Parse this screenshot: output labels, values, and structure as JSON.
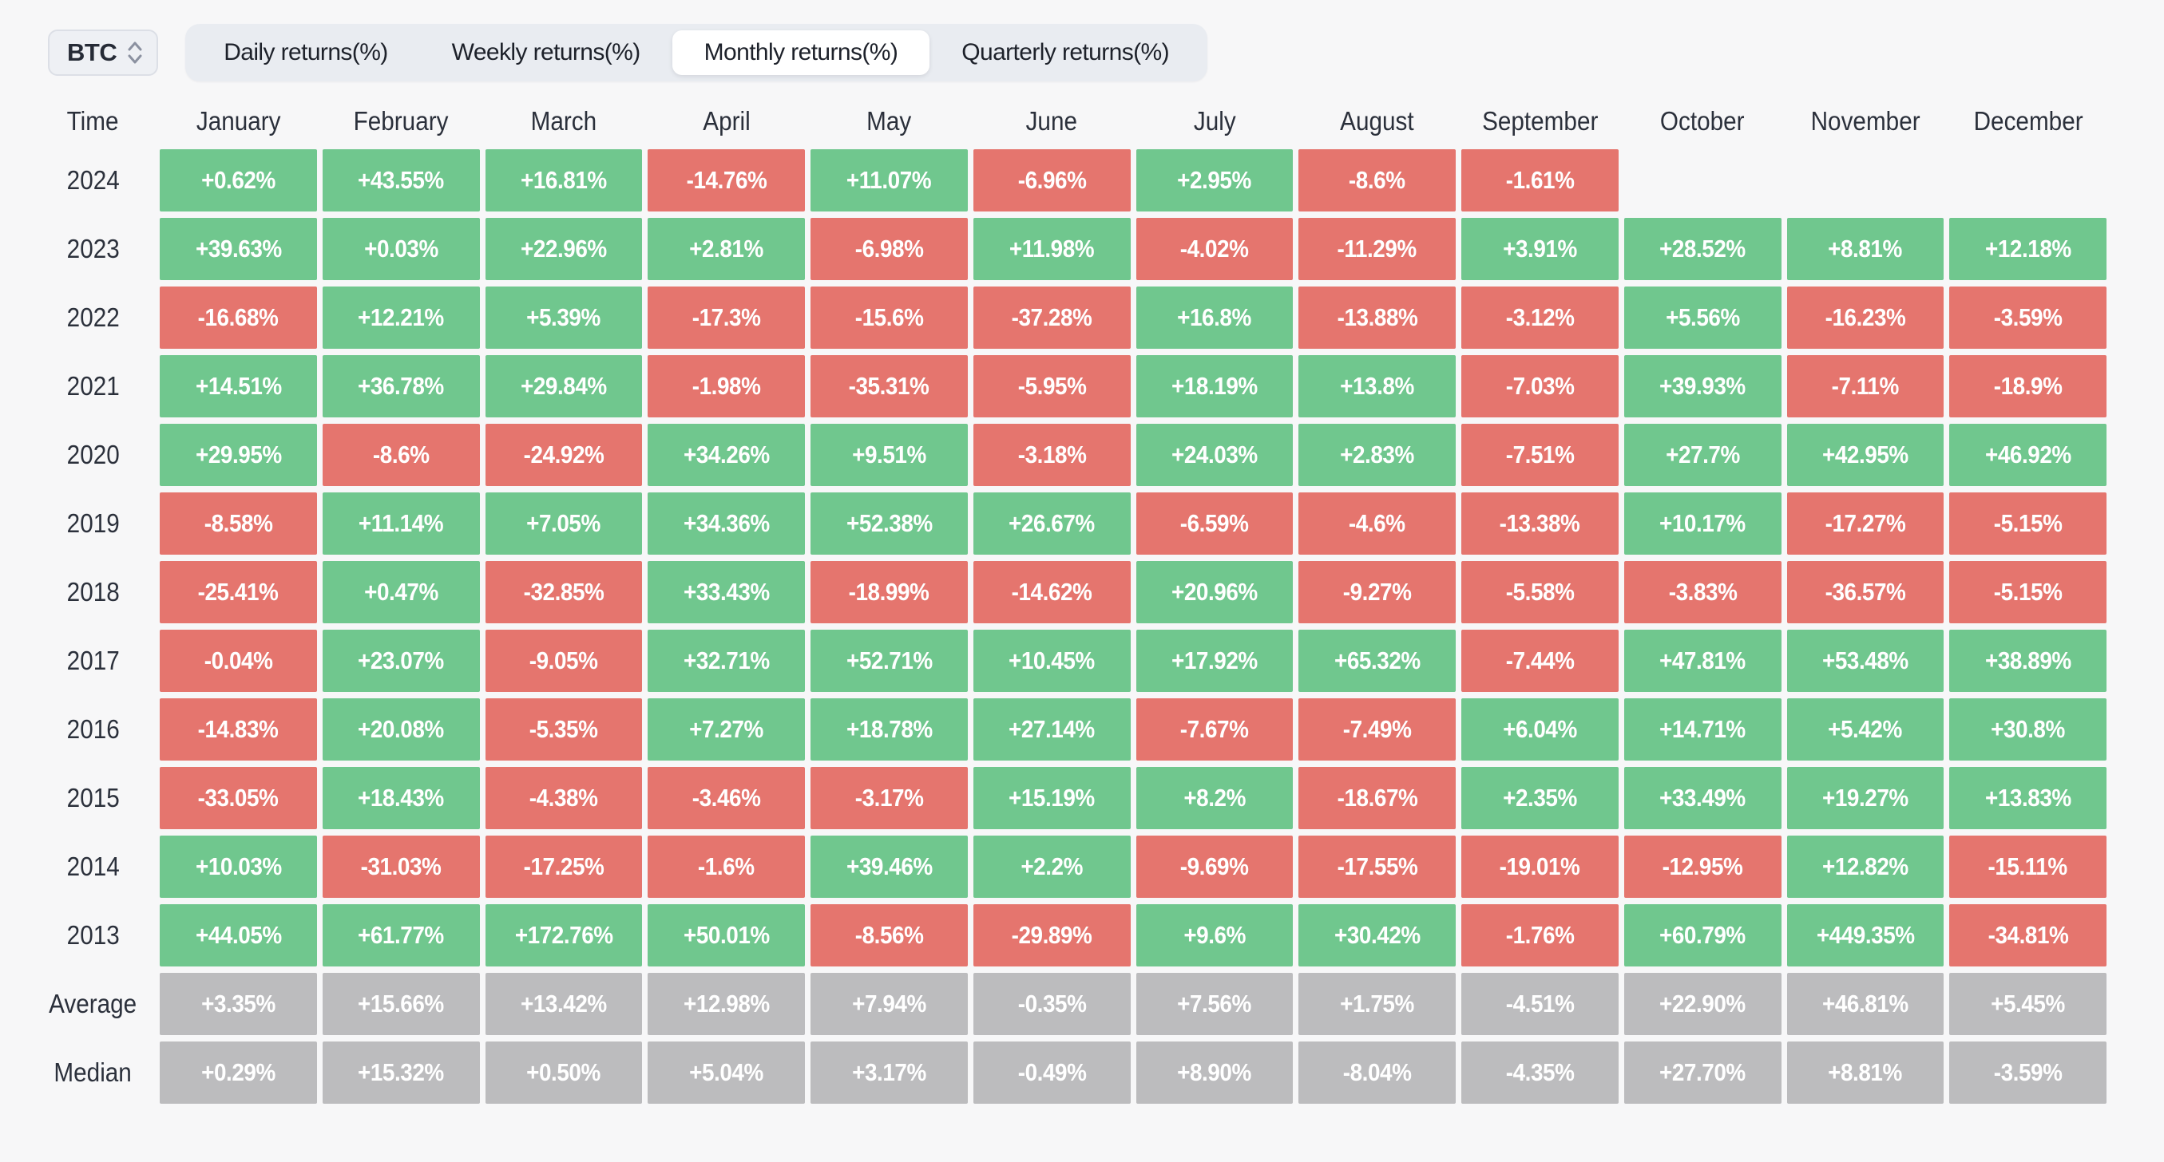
{
  "toolbar": {
    "asset_selector": {
      "value": "BTC"
    },
    "tabs": [
      {
        "label": "Daily returns(%)",
        "active": false
      },
      {
        "label": "Weekly returns(%)",
        "active": false
      },
      {
        "label": "Monthly returns(%)",
        "active": true
      },
      {
        "label": "Quarterly returns(%)",
        "active": false
      }
    ]
  },
  "colors": {
    "positive": "#70c78e",
    "negative": "#e5756e",
    "neutral": "#bcbcbe",
    "page_bg": "#f7f7f8",
    "pill_bg": "#e9ecf1",
    "active_tab_bg": "#ffffff"
  },
  "chart_data": {
    "type": "table",
    "title": "BTC Monthly returns(%)",
    "columns": [
      "Time",
      "January",
      "February",
      "March",
      "April",
      "May",
      "June",
      "July",
      "August",
      "September",
      "October",
      "November",
      "December"
    ],
    "rows": [
      {
        "label": "2024",
        "style": "signed",
        "values": [
          "+0.62%",
          "+43.55%",
          "+16.81%",
          "-14.76%",
          "+11.07%",
          "-6.96%",
          "+2.95%",
          "-8.6%",
          "-1.61%",
          "",
          "",
          ""
        ]
      },
      {
        "label": "2023",
        "style": "signed",
        "values": [
          "+39.63%",
          "+0.03%",
          "+22.96%",
          "+2.81%",
          "-6.98%",
          "+11.98%",
          "-4.02%",
          "-11.29%",
          "+3.91%",
          "+28.52%",
          "+8.81%",
          "+12.18%"
        ]
      },
      {
        "label": "2022",
        "style": "signed",
        "values": [
          "-16.68%",
          "+12.21%",
          "+5.39%",
          "-17.3%",
          "-15.6%",
          "-37.28%",
          "+16.8%",
          "-13.88%",
          "-3.12%",
          "+5.56%",
          "-16.23%",
          "-3.59%"
        ]
      },
      {
        "label": "2021",
        "style": "signed",
        "values": [
          "+14.51%",
          "+36.78%",
          "+29.84%",
          "-1.98%",
          "-35.31%",
          "-5.95%",
          "+18.19%",
          "+13.8%",
          "-7.03%",
          "+39.93%",
          "-7.11%",
          "-18.9%"
        ]
      },
      {
        "label": "2020",
        "style": "signed",
        "values": [
          "+29.95%",
          "-8.6%",
          "-24.92%",
          "+34.26%",
          "+9.51%",
          "-3.18%",
          "+24.03%",
          "+2.83%",
          "-7.51%",
          "+27.7%",
          "+42.95%",
          "+46.92%"
        ]
      },
      {
        "label": "2019",
        "style": "signed",
        "values": [
          "-8.58%",
          "+11.14%",
          "+7.05%",
          "+34.36%",
          "+52.38%",
          "+26.67%",
          "-6.59%",
          "-4.6%",
          "-13.38%",
          "+10.17%",
          "-17.27%",
          "-5.15%"
        ]
      },
      {
        "label": "2018",
        "style": "signed",
        "values": [
          "-25.41%",
          "+0.47%",
          "-32.85%",
          "+33.43%",
          "-18.99%",
          "-14.62%",
          "+20.96%",
          "-9.27%",
          "-5.58%",
          "-3.83%",
          "-36.57%",
          "-5.15%"
        ]
      },
      {
        "label": "2017",
        "style": "signed",
        "values": [
          "-0.04%",
          "+23.07%",
          "-9.05%",
          "+32.71%",
          "+52.71%",
          "+10.45%",
          "+17.92%",
          "+65.32%",
          "-7.44%",
          "+47.81%",
          "+53.48%",
          "+38.89%"
        ]
      },
      {
        "label": "2016",
        "style": "signed",
        "values": [
          "-14.83%",
          "+20.08%",
          "-5.35%",
          "+7.27%",
          "+18.78%",
          "+27.14%",
          "-7.67%",
          "-7.49%",
          "+6.04%",
          "+14.71%",
          "+5.42%",
          "+30.8%"
        ]
      },
      {
        "label": "2015",
        "style": "signed",
        "values": [
          "-33.05%",
          "+18.43%",
          "-4.38%",
          "-3.46%",
          "-3.17%",
          "+15.19%",
          "+8.2%",
          "-18.67%",
          "+2.35%",
          "+33.49%",
          "+19.27%",
          "+13.83%"
        ]
      },
      {
        "label": "2014",
        "style": "signed",
        "values": [
          "+10.03%",
          "-31.03%",
          "-17.25%",
          "-1.6%",
          "+39.46%",
          "+2.2%",
          "-9.69%",
          "-17.55%",
          "-19.01%",
          "-12.95%",
          "+12.82%",
          "-15.11%"
        ]
      },
      {
        "label": "2013",
        "style": "signed",
        "values": [
          "+44.05%",
          "+61.77%",
          "+172.76%",
          "+50.01%",
          "-8.56%",
          "-29.89%",
          "+9.6%",
          "+30.42%",
          "-1.76%",
          "+60.79%",
          "+449.35%",
          "-34.81%"
        ]
      },
      {
        "label": "Average",
        "style": "neutral",
        "values": [
          "+3.35%",
          "+15.66%",
          "+13.42%",
          "+12.98%",
          "+7.94%",
          "-0.35%",
          "+7.56%",
          "+1.75%",
          "-4.51%",
          "+22.90%",
          "+46.81%",
          "+5.45%"
        ]
      },
      {
        "label": "Median",
        "style": "neutral",
        "values": [
          "+0.29%",
          "+15.32%",
          "+0.50%",
          "+5.04%",
          "+3.17%",
          "-0.49%",
          "+8.90%",
          "-8.04%",
          "-4.35%",
          "+27.70%",
          "+8.81%",
          "-3.59%"
        ]
      }
    ]
  }
}
